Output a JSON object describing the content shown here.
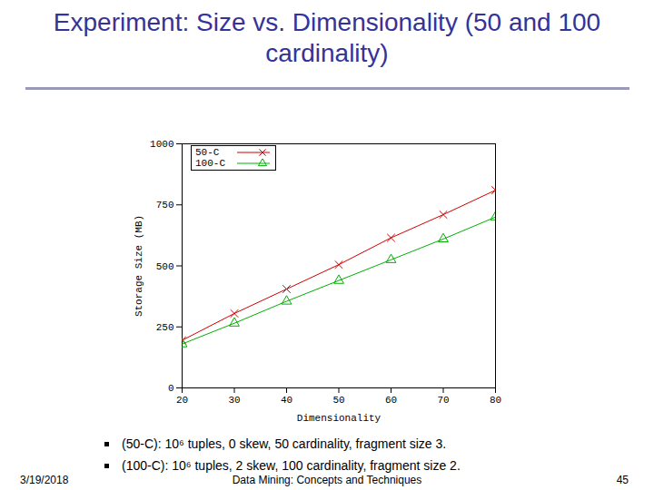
{
  "chart_data": {
    "type": "line",
    "title": "Experiment: Size vs. Dimensionality (50 and 100 cardinality)",
    "xlabel": "Dimensionality",
    "ylabel": "Storage Size (MB)",
    "x": [
      20,
      30,
      40,
      50,
      60,
      70,
      80
    ],
    "series": [
      {
        "name": "50-C",
        "color": "#d00000",
        "marker": "x",
        "line_style": "solid",
        "values": [
          195,
          305,
          405,
          505,
          615,
          710,
          810
        ]
      },
      {
        "name": "100-C",
        "color": "#00b000",
        "marker": "triangle",
        "line_style": "solid",
        "values": [
          180,
          265,
          355,
          440,
          525,
          610,
          700
        ]
      }
    ],
    "xlim": [
      20,
      80
    ],
    "xticks": [
      20,
      30,
      40,
      50,
      60,
      70,
      80
    ],
    "ylim": [
      0,
      1000
    ],
    "yticks": [
      0,
      250,
      500,
      750,
      1000
    ],
    "grid": false,
    "legend": "upper left",
    "annotations": [
      "(50-C): 10⁶ tuples, 0 skew, 50 cardinality, fragment size 3.",
      "(100-C): 10⁶ tuples, 2 skew, 100 cardinality, fragment size 2."
    ],
    "footer": {
      "date": "3/19/2018",
      "source": "Data Mining: Concepts and Techniques",
      "page": "45"
    }
  }
}
